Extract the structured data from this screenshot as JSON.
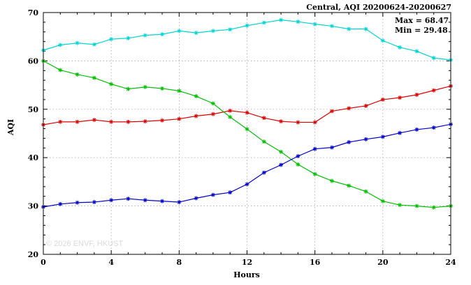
{
  "chart_data": {
    "type": "line",
    "title": "Central, AQI 20200624-20200627",
    "xlabel": "Hours",
    "ylabel": "AQI",
    "xlim": [
      0,
      24
    ],
    "ylim": [
      20,
      70
    ],
    "xticks": [
      0,
      4,
      8,
      12,
      16,
      20,
      24
    ],
    "yticks": [
      20,
      30,
      40,
      50,
      60,
      70
    ],
    "grid": true,
    "legend_position": "none",
    "annotations": {
      "max": "Max = 68.47",
      "min": "Min = 29.48"
    },
    "watermark": "© 2026 ENVF, HKUST",
    "x": [
      0,
      1,
      2,
      3,
      4,
      5,
      6,
      7,
      8,
      9,
      10,
      11,
      12,
      13,
      14,
      15,
      16,
      17,
      18,
      19,
      20,
      21,
      22,
      23,
      24
    ],
    "series": [
      {
        "name": "cyan-series",
        "color": "#00d5d5",
        "values": [
          62.2,
          63.3,
          63.7,
          63.4,
          64.5,
          64.7,
          65.3,
          65.5,
          66.2,
          65.8,
          66.2,
          66.5,
          67.3,
          67.9,
          68.47,
          68.1,
          67.6,
          67.2,
          66.6,
          66.6,
          64.2,
          62.8,
          62.0,
          60.6,
          60.2
        ]
      },
      {
        "name": "red-series",
        "color": "#dc0000",
        "values": [
          46.8,
          47.4,
          47.4,
          47.8,
          47.4,
          47.4,
          47.5,
          47.7,
          48.0,
          48.6,
          49.0,
          49.7,
          49.3,
          48.2,
          47.5,
          47.3,
          47.3,
          49.6,
          50.2,
          50.7,
          52.0,
          52.4,
          53.0,
          53.9,
          54.8
        ]
      },
      {
        "name": "green-series",
        "color": "#00c000",
        "values": [
          60.0,
          58.1,
          57.2,
          56.5,
          55.2,
          54.2,
          54.6,
          54.3,
          53.8,
          52.7,
          51.2,
          48.4,
          45.9,
          43.3,
          41.2,
          38.6,
          36.6,
          35.2,
          34.2,
          33.0,
          31.0,
          30.2,
          30.0,
          29.7,
          30.0
        ]
      },
      {
        "name": "blue-series",
        "color": "#0000cc",
        "values": [
          29.8,
          30.4,
          30.7,
          30.8,
          31.2,
          31.5,
          31.2,
          31.0,
          30.8,
          31.6,
          32.3,
          32.8,
          34.5,
          36.9,
          38.5,
          40.3,
          41.8,
          42.1,
          43.2,
          43.8,
          44.3,
          45.1,
          45.8,
          46.2,
          46.9
        ]
      }
    ]
  }
}
